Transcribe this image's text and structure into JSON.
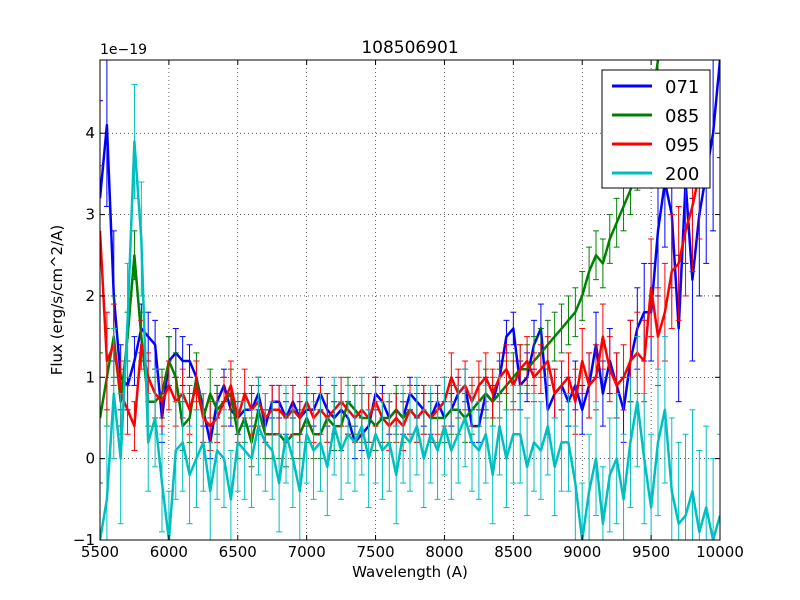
{
  "chart_data": {
    "type": "line",
    "title": "108506901",
    "xlabel": "Wavelength (A)",
    "ylabel": "Flux (erg/s/cm^2/A)",
    "offset_text": "1e−19",
    "xlim": [
      5500,
      10000
    ],
    "ylim": [
      -1,
      4.9
    ],
    "xticks": [
      5500,
      6000,
      6500,
      7000,
      7500,
      8000,
      8500,
      9000,
      9500,
      10000
    ],
    "yticks": [
      -1,
      0,
      1,
      2,
      3,
      4
    ],
    "ytick_labels": [
      "−1",
      "0",
      "1",
      "2",
      "3",
      "4"
    ],
    "grid": true,
    "legend_position": "top-right",
    "series": [
      {
        "name": "071",
        "color": "#0000ff",
        "x": [
          5500,
          5550,
          5600,
          5650,
          5700,
          5750,
          5800,
          5850,
          5900,
          5950,
          6000,
          6050,
          6100,
          6150,
          6200,
          6250,
          6300,
          6350,
          6400,
          6450,
          6500,
          6550,
          6600,
          6650,
          6700,
          6750,
          6800,
          6850,
          6900,
          6950,
          7000,
          7050,
          7100,
          7150,
          7200,
          7250,
          7300,
          7350,
          7400,
          7450,
          7500,
          7550,
          7600,
          7650,
          7700,
          7750,
          7800,
          7850,
          7900,
          7950,
          8000,
          8050,
          8100,
          8150,
          8200,
          8250,
          8300,
          8350,
          8400,
          8450,
          8500,
          8550,
          8600,
          8650,
          8700,
          8750,
          8800,
          8850,
          8900,
          8950,
          9000,
          9050,
          9100,
          9150,
          9200,
          9250,
          9300,
          9350,
          9400,
          9450,
          9500,
          9550,
          9600,
          9650,
          9700,
          9750,
          9800,
          9850,
          9900,
          9950,
          10000
        ],
        "y": [
          3.2,
          4.1,
          2.0,
          1.0,
          0.9,
          1.2,
          1.6,
          1.5,
          1.4,
          0.5,
          1.2,
          1.3,
          1.2,
          1.2,
          1.0,
          0.6,
          0.2,
          0.7,
          0.9,
          0.6,
          0.5,
          0.6,
          0.6,
          0.8,
          0.4,
          0.7,
          0.7,
          0.5,
          0.7,
          0.5,
          0.6,
          0.6,
          0.8,
          0.6,
          0.5,
          0.6,
          0.5,
          0.2,
          0.3,
          0.4,
          0.8,
          0.7,
          0.5,
          0.6,
          0.5,
          0.8,
          0.7,
          0.6,
          0.5,
          0.7,
          0.5,
          0.6,
          0.8,
          0.9,
          0.4,
          0.4,
          0.8,
          0.7,
          1.0,
          1.5,
          1.6,
          0.9,
          1.0,
          1.4,
          1.6,
          0.6,
          0.8,
          0.9,
          0.7,
          0.9,
          0.6,
          0.9,
          1.4,
          0.8,
          1.2,
          0.9,
          0.6,
          1.2,
          1.6,
          1.8,
          1.8,
          2.8,
          3.4,
          3.0,
          1.6,
          3.4,
          2.2,
          3.0,
          3.5,
          4.0,
          4.9
        ],
        "err": [
          1.2,
          1.0,
          0.8,
          0.4,
          0.3,
          0.3,
          0.3,
          0.3,
          0.3,
          0.3,
          0.3,
          0.3,
          0.3,
          0.2,
          0.2,
          0.2,
          0.2,
          0.2,
          0.2,
          0.2,
          0.2,
          0.2,
          0.2,
          0.2,
          0.2,
          0.2,
          0.2,
          0.2,
          0.2,
          0.2,
          0.2,
          0.2,
          0.2,
          0.2,
          0.2,
          0.2,
          0.2,
          0.2,
          0.2,
          0.2,
          0.2,
          0.2,
          0.2,
          0.2,
          0.2,
          0.2,
          0.2,
          0.2,
          0.2,
          0.2,
          0.2,
          0.2,
          0.2,
          0.2,
          0.2,
          0.2,
          0.2,
          0.2,
          0.2,
          0.2,
          0.2,
          0.3,
          0.3,
          0.3,
          0.3,
          0.3,
          0.3,
          0.3,
          0.3,
          0.3,
          0.3,
          0.4,
          0.4,
          0.4,
          0.4,
          0.4,
          0.4,
          0.5,
          0.5,
          0.6,
          0.6,
          0.8,
          0.8,
          0.9,
          0.9,
          1.0,
          1.0,
          1.0,
          1.1,
          1.2,
          1.2
        ]
      },
      {
        "name": "085",
        "color": "#008000",
        "x": [
          5500,
          5550,
          5600,
          5650,
          5700,
          5750,
          5800,
          5850,
          5900,
          5950,
          6000,
          6050,
          6100,
          6150,
          6200,
          6250,
          6300,
          6350,
          6400,
          6450,
          6500,
          6550,
          6600,
          6650,
          6700,
          6750,
          6800,
          6850,
          6900,
          6950,
          7000,
          7050,
          7100,
          7150,
          7200,
          7250,
          7300,
          7350,
          7400,
          7450,
          7500,
          7550,
          7600,
          7650,
          7700,
          7750,
          7800,
          7850,
          7900,
          7950,
          8000,
          8050,
          8100,
          8150,
          8200,
          8250,
          8300,
          8350,
          8400,
          8450,
          8500,
          8550,
          8600,
          8650,
          8700,
          8750,
          8800,
          8850,
          8900,
          8950,
          9000,
          9050,
          9100,
          9150,
          9200,
          9250,
          9300,
          9350,
          9400,
          9450,
          9500,
          9550
        ],
        "y": [
          0.5,
          1.0,
          1.5,
          0.7,
          1.5,
          2.5,
          1.5,
          0.7,
          0.7,
          0.8,
          1.2,
          1.0,
          0.4,
          0.5,
          1.0,
          0.5,
          0.8,
          0.6,
          0.7,
          0.8,
          0.3,
          0.5,
          0.2,
          0.6,
          0.3,
          0.3,
          0.3,
          0.2,
          0.3,
          0.3,
          0.5,
          0.3,
          0.3,
          0.5,
          0.4,
          0.4,
          0.7,
          0.6,
          0.5,
          0.5,
          0.4,
          0.5,
          0.5,
          0.6,
          0.5,
          0.6,
          0.5,
          0.6,
          0.5,
          0.5,
          0.5,
          0.6,
          0.6,
          0.5,
          0.6,
          0.7,
          0.8,
          0.7,
          0.8,
          0.9,
          1.0,
          1.1,
          1.1,
          1.2,
          1.3,
          1.4,
          1.5,
          1.6,
          1.7,
          1.8,
          2.0,
          2.3,
          2.5,
          2.4,
          2.7,
          2.9,
          3.1,
          3.3,
          3.6,
          3.9,
          4.3,
          4.9
        ],
        "err": [
          0.8,
          0.6,
          0.5,
          0.4,
          0.3,
          0.3,
          0.3,
          0.3,
          0.3,
          0.3,
          0.3,
          0.3,
          0.3,
          0.3,
          0.3,
          0.3,
          0.3,
          0.3,
          0.3,
          0.3,
          0.3,
          0.3,
          0.3,
          0.3,
          0.3,
          0.3,
          0.3,
          0.3,
          0.3,
          0.3,
          0.3,
          0.3,
          0.3,
          0.3,
          0.3,
          0.3,
          0.3,
          0.3,
          0.3,
          0.3,
          0.3,
          0.3,
          0.3,
          0.3,
          0.3,
          0.3,
          0.3,
          0.3,
          0.3,
          0.3,
          0.3,
          0.3,
          0.3,
          0.3,
          0.3,
          0.3,
          0.3,
          0.3,
          0.3,
          0.3,
          0.3,
          0.3,
          0.3,
          0.3,
          0.3,
          0.3,
          0.3,
          0.3,
          0.3,
          0.3,
          0.3,
          0.3,
          0.3,
          0.3,
          0.3,
          0.3,
          0.3,
          0.3,
          0.3,
          0.3,
          0.3,
          0.3
        ]
      },
      {
        "name": "095",
        "color": "#ff0000",
        "x": [
          5500,
          5550,
          5600,
          5650,
          5700,
          5750,
          5800,
          5850,
          5900,
          5950,
          6000,
          6050,
          6100,
          6150,
          6200,
          6250,
          6300,
          6350,
          6400,
          6450,
          6500,
          6550,
          6600,
          6650,
          6700,
          6750,
          6800,
          6850,
          6900,
          6950,
          7000,
          7050,
          7100,
          7150,
          7200,
          7250,
          7300,
          7350,
          7400,
          7450,
          7500,
          7550,
          7600,
          7650,
          7700,
          7750,
          7800,
          7850,
          7900,
          7950,
          8000,
          8050,
          8100,
          8150,
          8200,
          8250,
          8300,
          8350,
          8400,
          8450,
          8500,
          8550,
          8600,
          8650,
          8700,
          8750,
          8800,
          8850,
          8900,
          8950,
          9000,
          9050,
          9100,
          9150,
          9200,
          9250,
          9300,
          9350,
          9400,
          9450,
          9500,
          9550,
          9600,
          9650,
          9700,
          9750,
          9800,
          9850
        ],
        "y": [
          2.8,
          1.2,
          1.4,
          0.8,
          0.6,
          0.4,
          1.4,
          1.0,
          0.8,
          0.7,
          0.9,
          0.7,
          0.8,
          0.6,
          0.9,
          0.5,
          0.4,
          0.5,
          0.7,
          0.9,
          0.5,
          0.8,
          0.6,
          0.7,
          0.5,
          0.6,
          0.6,
          0.5,
          0.6,
          0.5,
          0.7,
          0.5,
          0.6,
          0.5,
          0.6,
          0.7,
          0.6,
          0.5,
          0.6,
          0.5,
          0.7,
          0.5,
          0.4,
          0.5,
          0.4,
          0.6,
          0.5,
          0.6,
          0.5,
          0.6,
          0.7,
          1.0,
          0.8,
          0.9,
          0.7,
          0.9,
          1.0,
          0.8,
          1.0,
          1.1,
          0.9,
          1.1,
          1.2,
          1.0,
          1.1,
          1.2,
          0.8,
          0.9,
          1.0,
          0.7,
          1.2,
          0.9,
          1.0,
          1.5,
          1.1,
          0.9,
          1.0,
          1.2,
          1.3,
          1.2,
          2.1,
          1.5,
          1.8,
          2.3,
          2.4,
          2.8,
          3.1,
          3.5
        ],
        "err": [
          0.8,
          0.6,
          0.5,
          0.4,
          0.3,
          0.3,
          0.3,
          0.3,
          0.3,
          0.3,
          0.3,
          0.3,
          0.3,
          0.3,
          0.3,
          0.3,
          0.3,
          0.3,
          0.3,
          0.3,
          0.3,
          0.3,
          0.3,
          0.3,
          0.3,
          0.3,
          0.3,
          0.3,
          0.3,
          0.3,
          0.3,
          0.3,
          0.3,
          0.3,
          0.3,
          0.3,
          0.3,
          0.3,
          0.3,
          0.3,
          0.3,
          0.3,
          0.3,
          0.3,
          0.3,
          0.3,
          0.3,
          0.3,
          0.3,
          0.3,
          0.3,
          0.3,
          0.3,
          0.3,
          0.3,
          0.3,
          0.3,
          0.3,
          0.3,
          0.3,
          0.3,
          0.3,
          0.3,
          0.3,
          0.3,
          0.3,
          0.3,
          0.3,
          0.3,
          0.4,
          0.4,
          0.4,
          0.4,
          0.4,
          0.4,
          0.4,
          0.4,
          0.5,
          0.5,
          0.5,
          0.6,
          0.6,
          0.6,
          0.7,
          0.7,
          0.8,
          0.8,
          0.8
        ]
      },
      {
        "name": "200",
        "color": "#00bfbf",
        "x": [
          5500,
          5550,
          5600,
          5650,
          5700,
          5750,
          5800,
          5850,
          5900,
          5950,
          6000,
          6050,
          6100,
          6150,
          6200,
          6250,
          6300,
          6350,
          6400,
          6450,
          6500,
          6550,
          6600,
          6650,
          6700,
          6750,
          6800,
          6850,
          6900,
          6950,
          7000,
          7050,
          7100,
          7150,
          7200,
          7250,
          7300,
          7350,
          7400,
          7450,
          7500,
          7550,
          7600,
          7650,
          7700,
          7750,
          7800,
          7850,
          7900,
          7950,
          8000,
          8050,
          8100,
          8150,
          8200,
          8250,
          8300,
          8350,
          8400,
          8450,
          8500,
          8550,
          8600,
          8650,
          8700,
          8750,
          8800,
          8850,
          8900,
          8950,
          9000,
          9050,
          9100,
          9150,
          9200,
          9250,
          9300,
          9350,
          9400,
          9450,
          9500,
          9550,
          9600,
          9650,
          9700,
          9750,
          9800,
          9850,
          9900,
          9950,
          10000
        ],
        "y": [
          -1.0,
          -0.5,
          0.8,
          0.0,
          1.7,
          3.9,
          2.7,
          0.2,
          0.5,
          -0.3,
          -1.0,
          0.1,
          0.2,
          -0.2,
          0.0,
          0.2,
          -0.4,
          0.1,
          0.0,
          -0.5,
          0.2,
          0.1,
          0.0,
          0.4,
          0.2,
          0.1,
          -0.3,
          0.3,
          0.0,
          -0.4,
          0.3,
          0.1,
          0.2,
          -0.1,
          0.4,
          0.1,
          0.3,
          0.2,
          0.4,
          0.0,
          0.3,
          0.1,
          0.2,
          -0.2,
          0.3,
          0.2,
          0.4,
          0.0,
          0.3,
          0.1,
          0.4,
          0.1,
          0.3,
          0.5,
          0.2,
          0.1,
          0.3,
          -0.2,
          0.4,
          0.0,
          0.3,
          0.3,
          -0.1,
          0.2,
          0.1,
          0.4,
          -0.1,
          0.2,
          0.2,
          -0.3,
          -1.0,
          -0.4,
          0.0,
          -0.8,
          -0.2,
          0.0,
          -0.5,
          0.2,
          0.7,
          0.0,
          -0.6,
          0.2,
          0.6,
          -0.4,
          -0.8,
          -0.7,
          -0.4,
          -0.9,
          -0.6,
          -1.0,
          -0.7
        ],
        "err": [
          1.0,
          0.9,
          0.8,
          0.8,
          0.7,
          0.7,
          0.7,
          0.6,
          0.6,
          0.6,
          0.6,
          0.6,
          0.6,
          0.6,
          0.6,
          0.6,
          0.6,
          0.6,
          0.6,
          0.6,
          0.6,
          0.6,
          0.6,
          0.6,
          0.6,
          0.6,
          0.6,
          0.6,
          0.6,
          0.6,
          0.6,
          0.6,
          0.6,
          0.6,
          0.6,
          0.6,
          0.6,
          0.6,
          0.6,
          0.6,
          0.6,
          0.6,
          0.6,
          0.6,
          0.6,
          0.6,
          0.6,
          0.6,
          0.6,
          0.6,
          0.6,
          0.6,
          0.6,
          0.6,
          0.6,
          0.6,
          0.6,
          0.6,
          0.6,
          0.6,
          0.6,
          0.6,
          0.6,
          0.6,
          0.6,
          0.6,
          0.6,
          0.6,
          0.6,
          0.7,
          0.7,
          0.7,
          0.7,
          0.7,
          0.7,
          0.8,
          0.8,
          0.8,
          0.8,
          0.8,
          0.9,
          0.9,
          0.9,
          0.9,
          1.0,
          1.0,
          1.0,
          1.0,
          1.0,
          1.0,
          1.0
        ]
      }
    ]
  }
}
